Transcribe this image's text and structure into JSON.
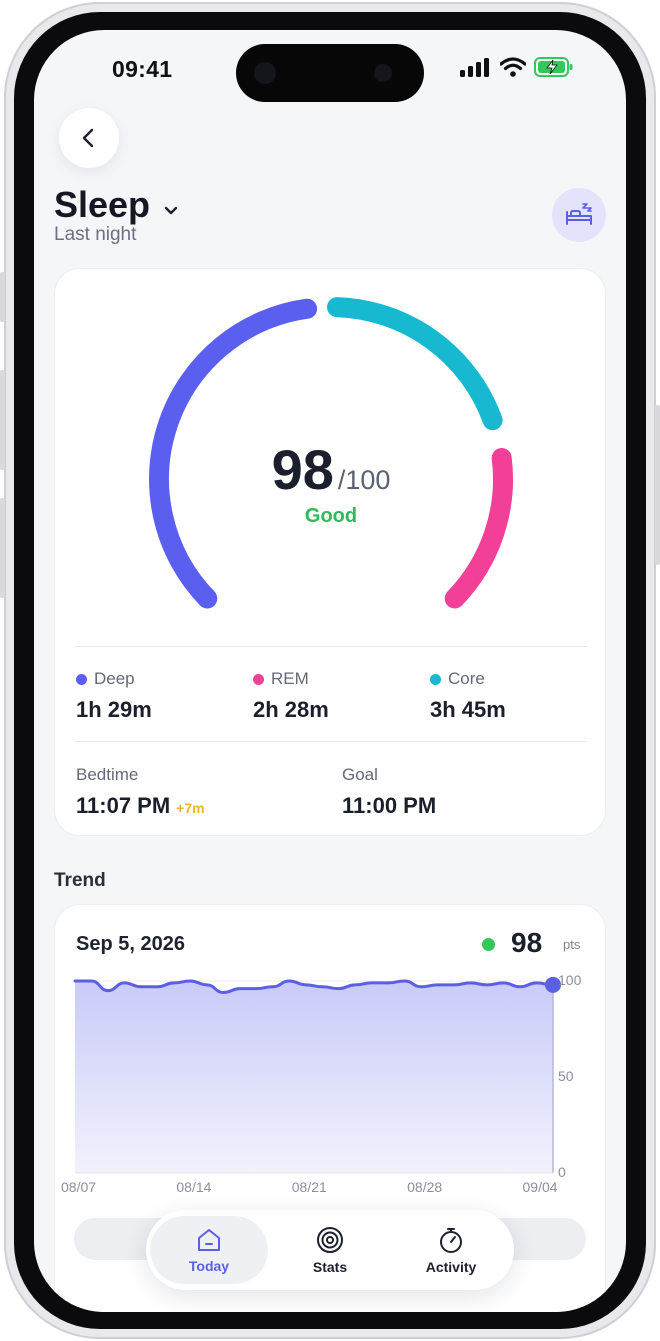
{
  "status_bar": {
    "time": "09:41"
  },
  "header": {
    "title": "Sleep",
    "subtitle": "Last night"
  },
  "colors": {
    "deep": "#5b5ff0",
    "rem": "#f23f98",
    "core": "#17b9d1",
    "good": "#34b95a",
    "accent": "#5b5fe6"
  },
  "score": {
    "value": "98",
    "max": "/100",
    "label": "Good"
  },
  "stages": [
    {
      "name": "Deep",
      "value": "1h 29m"
    },
    {
      "name": "REM",
      "value": "2h 28m"
    },
    {
      "name": "Core",
      "value": "3h 45m"
    }
  ],
  "bedtime": {
    "label": "Bedtime",
    "value": "11:07 PM",
    "delta": "+7m"
  },
  "goal": {
    "label": "Goal",
    "value": "11:00 PM"
  },
  "trend": {
    "section_title": "Trend",
    "date": "Sep 5, 2026",
    "value": "98",
    "unit": "pts"
  },
  "chart_data": {
    "type": "area",
    "x": [
      "08/07",
      "08/08",
      "08/09",
      "08/10",
      "08/11",
      "08/12",
      "08/13",
      "08/14",
      "08/15",
      "08/16",
      "08/17",
      "08/18",
      "08/19",
      "08/20",
      "08/21",
      "08/22",
      "08/23",
      "08/24",
      "08/25",
      "08/26",
      "08/27",
      "08/28",
      "08/29",
      "08/30",
      "08/31",
      "09/01",
      "09/02",
      "09/03",
      "09/04",
      "09/05"
    ],
    "values": [
      100,
      100,
      95,
      99,
      97,
      97,
      99,
      100,
      98,
      94,
      96,
      96,
      97,
      100,
      98,
      97,
      96,
      98,
      99,
      99,
      100,
      97,
      98,
      98,
      99,
      98,
      99,
      97,
      99,
      98
    ],
    "x_ticks": [
      "08/07",
      "08/14",
      "08/21",
      "08/28",
      "09/04"
    ],
    "y_ticks": [
      "100",
      "50",
      "0"
    ],
    "ylim": [
      0,
      100
    ]
  },
  "tabbar": {
    "tabs": [
      {
        "label": "Today"
      },
      {
        "label": "Stats"
      },
      {
        "label": "Activity"
      }
    ]
  }
}
